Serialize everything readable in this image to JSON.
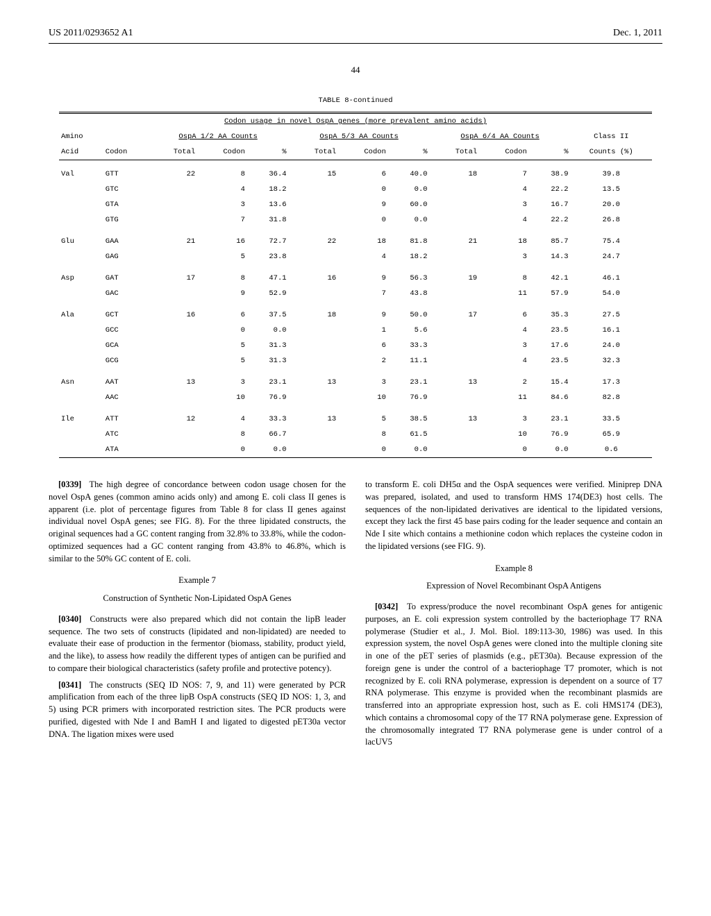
{
  "header": {
    "pub_no": "US 2011/0293652 A1",
    "date": "Dec. 1, 2011",
    "page_top": "44"
  },
  "table": {
    "title": "TABLE 8-continued",
    "caption": "Codon usage in novel OspA genes (more prevalent amino acids)",
    "group_headers": {
      "amino": "Amino",
      "g1": "OspA 1/2 AA Counts",
      "g2": "OspA 5/3 AA Counts",
      "g3": "OspA 6/4 AA Counts",
      "class2": "Class II"
    },
    "col_headers": {
      "acid": "Acid",
      "codon": "Codon",
      "total": "Total",
      "codon_ct": "Codon",
      "pct": "%",
      "counts_pct": "Counts (%)"
    },
    "rows": [
      {
        "aa": "Val",
        "codon": "GTT",
        "t1": "22",
        "c1": "8",
        "p1": "36.4",
        "t2": "15",
        "c2": "6",
        "p2": "40.0",
        "t3": "18",
        "c3": "7",
        "p3": "38.9",
        "cls": "39.8",
        "first": true
      },
      {
        "aa": "",
        "codon": "GTC",
        "t1": "",
        "c1": "4",
        "p1": "18.2",
        "t2": "",
        "c2": "0",
        "p2": "0.0",
        "t3": "",
        "c3": "4",
        "p3": "22.2",
        "cls": "13.5"
      },
      {
        "aa": "",
        "codon": "GTA",
        "t1": "",
        "c1": "3",
        "p1": "13.6",
        "t2": "",
        "c2": "9",
        "p2": "60.0",
        "t3": "",
        "c3": "3",
        "p3": "16.7",
        "cls": "20.0"
      },
      {
        "aa": "",
        "codon": "GTG",
        "t1": "",
        "c1": "7",
        "p1": "31.8",
        "t2": "",
        "c2": "0",
        "p2": "0.0",
        "t3": "",
        "c3": "4",
        "p3": "22.2",
        "cls": "26.8"
      },
      {
        "aa": "Glu",
        "codon": "GAA",
        "t1": "21",
        "c1": "16",
        "p1": "72.7",
        "t2": "22",
        "c2": "18",
        "p2": "81.8",
        "t3": "21",
        "c3": "18",
        "p3": "85.7",
        "cls": "75.4",
        "first": true
      },
      {
        "aa": "",
        "codon": "GAG",
        "t1": "",
        "c1": "5",
        "p1": "23.8",
        "t2": "",
        "c2": "4",
        "p2": "18.2",
        "t3": "",
        "c3": "3",
        "p3": "14.3",
        "cls": "24.7"
      },
      {
        "aa": "Asp",
        "codon": "GAT",
        "t1": "17",
        "c1": "8",
        "p1": "47.1",
        "t2": "16",
        "c2": "9",
        "p2": "56.3",
        "t3": "19",
        "c3": "8",
        "p3": "42.1",
        "cls": "46.1",
        "first": true
      },
      {
        "aa": "",
        "codon": "GAC",
        "t1": "",
        "c1": "9",
        "p1": "52.9",
        "t2": "",
        "c2": "7",
        "p2": "43.8",
        "t3": "",
        "c3": "11",
        "p3": "57.9",
        "cls": "54.0"
      },
      {
        "aa": "Ala",
        "codon": "GCT",
        "t1": "16",
        "c1": "6",
        "p1": "37.5",
        "t2": "18",
        "c2": "9",
        "p2": "50.0",
        "t3": "17",
        "c3": "6",
        "p3": "35.3",
        "cls": "27.5",
        "first": true
      },
      {
        "aa": "",
        "codon": "GCC",
        "t1": "",
        "c1": "0",
        "p1": "0.0",
        "t2": "",
        "c2": "1",
        "p2": "5.6",
        "t3": "",
        "c3": "4",
        "p3": "23.5",
        "cls": "16.1"
      },
      {
        "aa": "",
        "codon": "GCA",
        "t1": "",
        "c1": "5",
        "p1": "31.3",
        "t2": "",
        "c2": "6",
        "p2": "33.3",
        "t3": "",
        "c3": "3",
        "p3": "17.6",
        "cls": "24.0"
      },
      {
        "aa": "",
        "codon": "GCG",
        "t1": "",
        "c1": "5",
        "p1": "31.3",
        "t2": "",
        "c2": "2",
        "p2": "11.1",
        "t3": "",
        "c3": "4",
        "p3": "23.5",
        "cls": "32.3"
      },
      {
        "aa": "Asn",
        "codon": "AAT",
        "t1": "13",
        "c1": "3",
        "p1": "23.1",
        "t2": "13",
        "c2": "3",
        "p2": "23.1",
        "t3": "13",
        "c3": "2",
        "p3": "15.4",
        "cls": "17.3",
        "first": true
      },
      {
        "aa": "",
        "codon": "AAC",
        "t1": "",
        "c1": "10",
        "p1": "76.9",
        "t2": "",
        "c2": "10",
        "p2": "76.9",
        "t3": "",
        "c3": "11",
        "p3": "84.6",
        "cls": "82.8"
      },
      {
        "aa": "Ile",
        "codon": "ATT",
        "t1": "12",
        "c1": "4",
        "p1": "33.3",
        "t2": "13",
        "c2": "5",
        "p2": "38.5",
        "t3": "13",
        "c3": "3",
        "p3": "23.1",
        "cls": "33.5",
        "first": true
      },
      {
        "aa": "",
        "codon": "ATC",
        "t1": "",
        "c1": "8",
        "p1": "66.7",
        "t2": "",
        "c2": "8",
        "p2": "61.5",
        "t3": "",
        "c3": "10",
        "p3": "76.9",
        "cls": "65.9"
      },
      {
        "aa": "",
        "codon": "ATA",
        "t1": "",
        "c1": "0",
        "p1": "0.0",
        "t2": "",
        "c2": "0",
        "p2": "0.0",
        "t3": "",
        "c3": "0",
        "p3": "0.0",
        "cls": "0.6"
      }
    ]
  },
  "body": {
    "p0339_num": "[0339]",
    "p0339": "The high degree of concordance between codon usage chosen for the novel OspA genes (common amino acids only) and among E. coli class II genes is apparent (i.e. plot of percentage figures from Table 8 for class II genes against individual novel OspA genes; see FIG. 8). For the three lipidated constructs, the original sequences had a GC content ranging from 32.8% to 33.8%, while the codon-optimized sequences had a GC content ranging from 43.8% to 46.8%, which is similar to the 50% GC content of E. coli.",
    "ex7": "Example 7",
    "ex7_sub": "Construction of Synthetic Non-Lipidated OspA Genes",
    "p0340_num": "[0340]",
    "p0340": "Constructs were also prepared which did not contain the lipB leader sequence. The two sets of constructs (lipidated and non-lipidated) are needed to evaluate their ease of production in the fermentor (biomass, stability, product yield, and the like), to assess how readily the different types of antigen can be purified and to compare their biological characteristics (safety profile and protective potency).",
    "p0341_num": "[0341]",
    "p0341": "The constructs (SEQ ID NOS: 7, 9, and 11) were generated by PCR amplification from each of the three lipB OspA constructs (SEQ ID NOS: 1, 3, and 5) using PCR primers with incorporated restriction sites. The PCR products were purified, digested with Nde I and BamH I and ligated to digested pET30a vector DNA. The ligation mixes were used",
    "p_right1": "to transform E. coli DH5α and the OspA sequences were verified. Miniprep DNA was prepared, isolated, and used to transform HMS 174(DE3) host cells. The sequences of the non-lipidated derivatives are identical to the lipidated versions, except they lack the first 45 base pairs coding for the leader sequence and contain an Nde I site which contains a methionine codon which replaces the cysteine codon in the lipidated versions (see FIG. 9).",
    "ex8": "Example 8",
    "ex8_sub": "Expression of Novel Recombinant OspA Antigens",
    "p0342_num": "[0342]",
    "p0342": "To express/produce the novel recombinant OspA genes for antigenic purposes, an E. coli expression system controlled by the bacteriophage T7 RNA polymerase (Studier et al., J. Mol. Biol. 189:113-30, 1986) was used. In this expression system, the novel OspA genes were cloned into the multiple cloning site in one of the pET series of plasmids (e.g., pET30a). Because expression of the foreign gene is under the control of a bacteriophage T7 promoter, which is not recognized by E. coli RNA polymerase, expression is dependent on a source of T7 RNA polymerase. This enzyme is provided when the recombinant plasmids are transferred into an appropriate expression host, such as E. coli HMS174 (DE3), which contains a chromosomal copy of the T7 RNA polymerase gene. Expression of the chromosomally integrated T7 RNA polymerase gene is under control of a lacUV5"
  }
}
